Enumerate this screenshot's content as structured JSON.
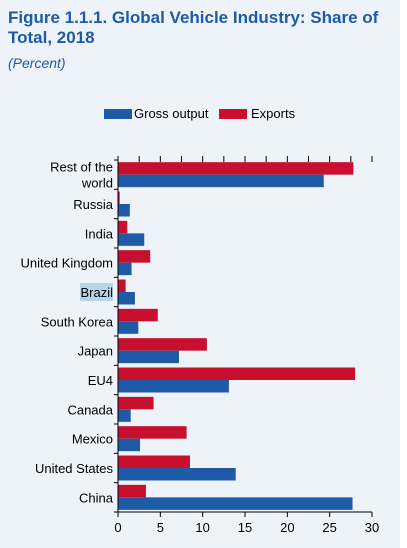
{
  "figure": {
    "title": "Figure 1.1.1.  Global Vehicle Industry: Share of Total, 2018",
    "subtitle": "(Percent)"
  },
  "colors": {
    "gross_output": "#1f5aa6",
    "exports": "#c8102e",
    "panel_bg": "#eef3fa",
    "title": "#1f5aa6",
    "highlight": "#b8d4ea"
  },
  "chart_data": {
    "type": "bar",
    "orientation": "horizontal",
    "title": "Global Vehicle Industry: Share of Total, 2018",
    "units": "(Percent)",
    "categories": [
      "Rest of the world",
      "Russia",
      "India",
      "United Kingdom",
      "Brazil",
      "South Korea",
      "Japan",
      "EU4",
      "Canada",
      "Mexico",
      "United States",
      "China"
    ],
    "category_lines": [
      [
        "Rest of the",
        "world"
      ],
      [
        "Russia"
      ],
      [
        "India"
      ],
      [
        "United Kingdom"
      ],
      [
        "Brazil"
      ],
      [
        "South Korea"
      ],
      [
        "Japan"
      ],
      [
        "EU4"
      ],
      [
        "Canada"
      ],
      [
        "Mexico"
      ],
      [
        "United States"
      ],
      [
        "China"
      ]
    ],
    "highlighted_category": "Brazil",
    "series": [
      {
        "name": "Gross output",
        "values": [
          24.3,
          1.4,
          3.1,
          1.6,
          2.0,
          2.4,
          7.2,
          13.1,
          1.5,
          2.6,
          13.9,
          27.7
        ]
      },
      {
        "name": "Exports",
        "values": [
          27.8,
          0.2,
          1.1,
          3.8,
          0.9,
          4.7,
          10.5,
          28.0,
          4.2,
          8.1,
          8.5,
          3.3
        ]
      }
    ],
    "xlim": [
      0,
      30
    ],
    "xticks": [
      0,
      5,
      10,
      15,
      20,
      25,
      30
    ],
    "legend_position": "top",
    "grid": false
  }
}
